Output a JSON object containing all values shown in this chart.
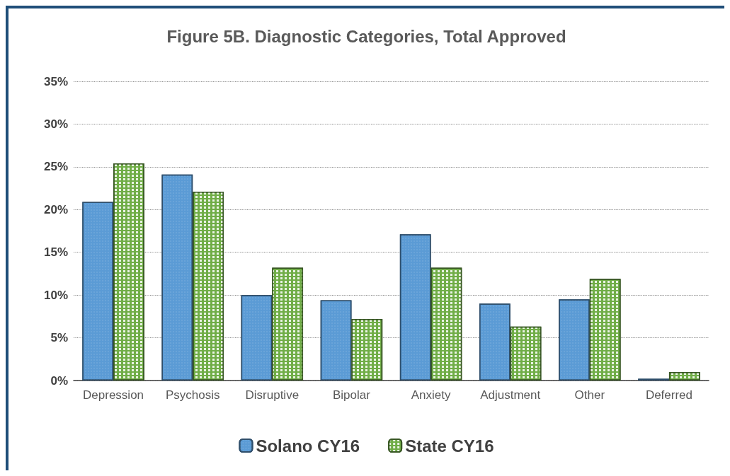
{
  "chart_data": {
    "type": "bar",
    "title": "Figure 5B. Diagnostic Categories, Total Approved",
    "categories": [
      "Depression",
      "Psychosis",
      "Disruptive",
      "Bipolar",
      "Anxiety",
      "Adjustment",
      "Other",
      "Deferred"
    ],
    "series": [
      {
        "name": "Solano CY16",
        "color": "#5b9bd5",
        "values": [
          20.9,
          24.1,
          10.0,
          9.4,
          17.1,
          9.0,
          9.5,
          0.2
        ]
      },
      {
        "name": "State CY16",
        "color": "#70ad47",
        "values": [
          25.4,
          22.1,
          13.2,
          7.2,
          13.2,
          6.3,
          11.9,
          1.0
        ]
      }
    ],
    "ylim": [
      0,
      35
    ],
    "yticks": [
      {
        "value": 0,
        "label": "0%"
      },
      {
        "value": 5,
        "label": "5%"
      },
      {
        "value": 10,
        "label": "10%"
      },
      {
        "value": 15,
        "label": "15%"
      },
      {
        "value": 20,
        "label": "20%"
      },
      {
        "value": 25,
        "label": "25%"
      },
      {
        "value": 30,
        "label": "30%"
      },
      {
        "value": 35,
        "label": "35%"
      }
    ],
    "grid": "y",
    "legend": "bottom"
  }
}
